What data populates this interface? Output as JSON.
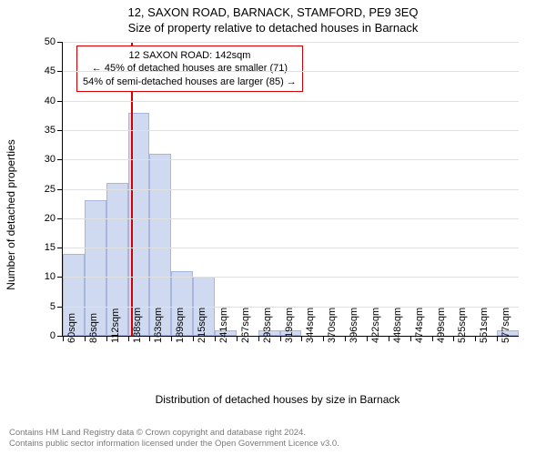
{
  "title_top": "12, SAXON ROAD, BARNACK, STAMFORD, PE9 3EQ",
  "title_sub": "Size of property relative to detached houses in Barnack",
  "y_axis_label": "Number of detached properties",
  "x_axis_label": "Distribution of detached houses by size in Barnack",
  "chart": {
    "type": "histogram",
    "bar_fill": "#cfd9f0",
    "bar_border": "#a8b6dd",
    "grid_color": "#e0e0e0",
    "ref_line_color": "#d40000",
    "background_color": "#ffffff",
    "ylim": [
      0,
      50
    ],
    "ytick_step": 5,
    "categories": [
      "60sqm",
      "86sqm",
      "112sqm",
      "138sqm",
      "163sqm",
      "189sqm",
      "215sqm",
      "241sqm",
      "267sqm",
      "293sqm",
      "319sqm",
      "344sqm",
      "370sqm",
      "396sqm",
      "422sqm",
      "448sqm",
      "474sqm",
      "499sqm",
      "525sqm",
      "551sqm",
      "577sqm"
    ],
    "values": [
      14,
      23,
      26,
      38,
      31,
      11,
      10,
      1,
      0,
      1,
      1,
      0,
      0,
      0,
      0,
      0,
      0,
      0,
      0,
      0,
      1
    ],
    "ref_value_sqm": 142,
    "x_min_sqm": 60,
    "x_bucket_width_sqm": 26,
    "bar_gap_ratio": 0.0
  },
  "callout": {
    "line1": "12 SAXON ROAD: 142sqm",
    "line2": "← 45% of detached houses are smaller (71)",
    "line3": "54% of semi-detached houses are larger (85) →"
  },
  "footer": {
    "line1": "Contains HM Land Registry data © Crown copyright and database right 2024.",
    "line2": "Contains public sector information licensed under the Open Government Licence v3.0."
  }
}
